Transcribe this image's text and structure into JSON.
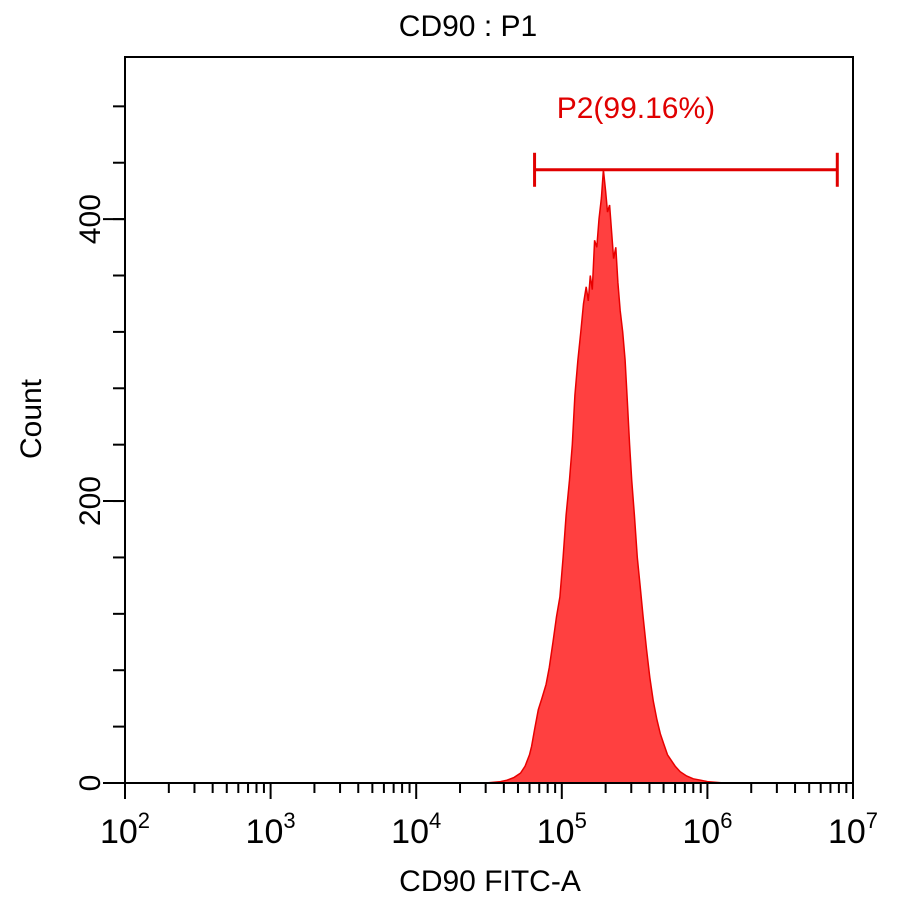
{
  "chart_data": {
    "type": "area",
    "title": "CD90 : P1",
    "xlabel": "CD90 FITC-A",
    "ylabel": "Count",
    "x_scale": "log",
    "xlim": [
      100,
      10000000
    ],
    "ylim": [
      0,
      515
    ],
    "x_ticks": [
      {
        "value": 100,
        "base": "10",
        "exp": "2"
      },
      {
        "value": 1000,
        "base": "10",
        "exp": "3"
      },
      {
        "value": 10000,
        "base": "10",
        "exp": "4"
      },
      {
        "value": 100000,
        "base": "10",
        "exp": "5"
      },
      {
        "value": 1000000,
        "base": "10",
        "exp": "6"
      },
      {
        "value": 10000000,
        "base": "10",
        "exp": "7"
      }
    ],
    "y_ticks": [
      {
        "value": 0,
        "label": "0"
      },
      {
        "value": 200,
        "label": "200"
      },
      {
        "value": 400,
        "label": "400"
      }
    ],
    "y_minor_step": 40,
    "grid": false,
    "series": [
      {
        "color": "#ff4040",
        "stroke": "#e80000",
        "points": [
          [
            30000,
            0
          ],
          [
            38000,
            1
          ],
          [
            42000,
            2
          ],
          [
            47000,
            4
          ],
          [
            52000,
            7
          ],
          [
            56000,
            12
          ],
          [
            60000,
            20
          ],
          [
            62000,
            26
          ],
          [
            65000,
            38
          ],
          [
            69000,
            52
          ],
          [
            73000,
            60
          ],
          [
            78000,
            70
          ],
          [
            82000,
            82
          ],
          [
            87000,
            100
          ],
          [
            92000,
            118
          ],
          [
            97000,
            132
          ],
          [
            102000,
            160
          ],
          [
            107000,
            190
          ],
          [
            113000,
            215
          ],
          [
            118000,
            240
          ],
          [
            123000,
            275
          ],
          [
            129000,
            300
          ],
          [
            135000,
            320
          ],
          [
            141000,
            340
          ],
          [
            147000,
            352
          ],
          [
            152000,
            342
          ],
          [
            157000,
            360
          ],
          [
            162000,
            350
          ],
          [
            168000,
            385
          ],
          [
            174000,
            380
          ],
          [
            180000,
            400
          ],
          [
            187000,
            415
          ],
          [
            193000,
            435
          ],
          [
            200000,
            420
          ],
          [
            206000,
            405
          ],
          [
            213000,
            410
          ],
          [
            220000,
            390
          ],
          [
            227000,
            372
          ],
          [
            235000,
            380
          ],
          [
            243000,
            355
          ],
          [
            252000,
            335
          ],
          [
            262000,
            320
          ],
          [
            272000,
            300
          ],
          [
            282000,
            270
          ],
          [
            292000,
            240
          ],
          [
            302000,
            215
          ],
          [
            315000,
            190
          ],
          [
            330000,
            160
          ],
          [
            345000,
            140
          ],
          [
            362000,
            118
          ],
          [
            382000,
            95
          ],
          [
            402000,
            75
          ],
          [
            425000,
            58
          ],
          [
            450000,
            45
          ],
          [
            475000,
            35
          ],
          [
            500000,
            28
          ],
          [
            532000,
            20
          ],
          [
            565000,
            16
          ],
          [
            600000,
            12
          ],
          [
            650000,
            8
          ],
          [
            720000,
            5
          ],
          [
            800000,
            3
          ],
          [
            900000,
            2
          ],
          [
            1000000,
            1
          ],
          [
            1300000,
            0
          ]
        ]
      }
    ],
    "gate": {
      "label": "P2(99.16%)",
      "x_start": 65000,
      "x_end": 7800000,
      "y": 435,
      "color": "#e00000"
    }
  }
}
